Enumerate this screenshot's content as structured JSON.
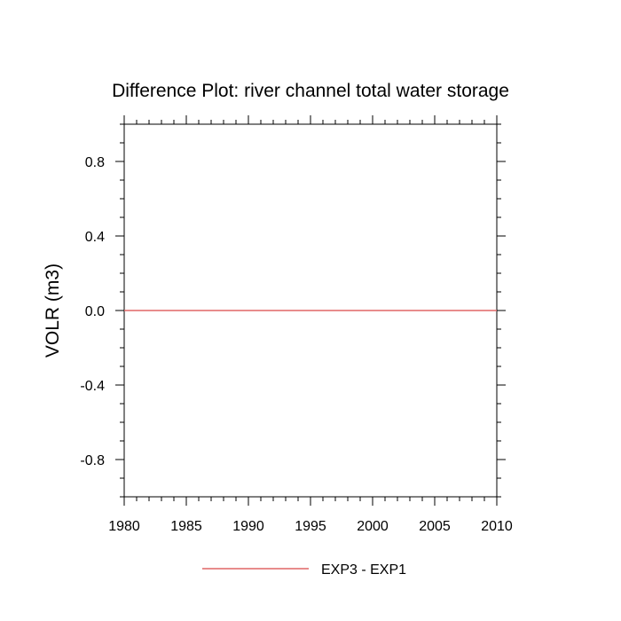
{
  "chart_data": {
    "type": "line",
    "title": "Difference Plot: river channel total water storage",
    "xlabel": "",
    "ylabel": "VOLR  (m3)",
    "xlim": [
      1980,
      2010
    ],
    "ylim": [
      -1.0,
      1.0
    ],
    "x_ticks": [
      1980,
      1985,
      1990,
      1995,
      2000,
      2005,
      2010
    ],
    "x_tick_labels": [
      "1980",
      "1985",
      "1990",
      "1995",
      "2000",
      "2005",
      "2010"
    ],
    "y_ticks": [
      -0.8,
      -0.4,
      0.0,
      0.4,
      0.8
    ],
    "y_tick_labels": [
      "-0.8",
      "-0.4",
      "0.0",
      "0.4",
      "0.8"
    ],
    "grid": false,
    "legend_position": "bottom",
    "series": [
      {
        "name": "EXP3 - EXP1",
        "color": "#e06666",
        "x": [
          1980,
          2010
        ],
        "values": [
          0.0,
          0.0
        ]
      }
    ]
  }
}
